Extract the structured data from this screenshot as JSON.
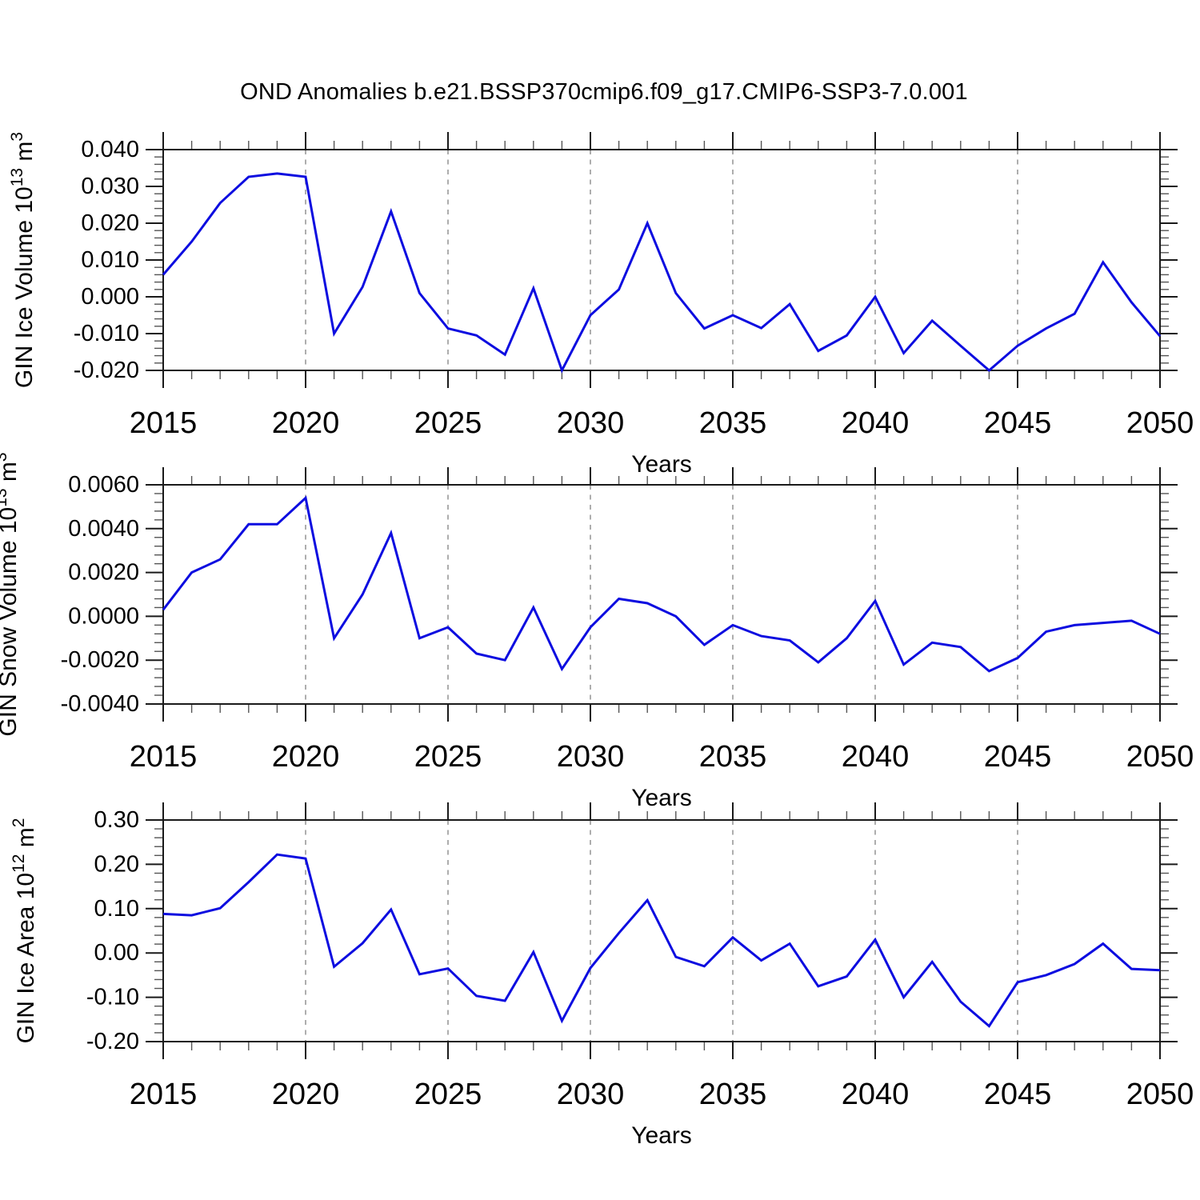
{
  "title": "OND Anomalies b.e21.BSSP370cmip6.f09_g17.CMIP6-SSP3-7.0.001",
  "xlabel": "Years",
  "colors": {
    "line": "#0d0de0",
    "grid": "#999999",
    "axis": "#1a1a1a",
    "minor_tick": "#555555",
    "text": "#000000"
  },
  "years": [
    2015,
    2016,
    2017,
    2018,
    2019,
    2020,
    2021,
    2022,
    2023,
    2024,
    2025,
    2026,
    2027,
    2028,
    2029,
    2030,
    2031,
    2032,
    2033,
    2034,
    2035,
    2036,
    2037,
    2038,
    2039,
    2040,
    2041,
    2042,
    2043,
    2044,
    2045,
    2046,
    2047,
    2048,
    2049,
    2050
  ],
  "x_major_ticks": [
    2015,
    2020,
    2025,
    2030,
    2035,
    2040,
    2045,
    2050
  ],
  "x_gridline_years": [
    2020,
    2025,
    2030,
    2035,
    2040,
    2045
  ],
  "chart_data": [
    {
      "type": "line",
      "name": "gin-ice-volume",
      "ylabel_parts": [
        "GIN Ice Volume 10",
        "13",
        " m",
        "3"
      ],
      "xlabel": "Years",
      "x_range": [
        2015,
        2050
      ],
      "x_step": 1,
      "ylim": [
        -0.02,
        0.04
      ],
      "y_minor_step": 0.002,
      "yticks": [
        {
          "value": 0.04,
          "label": "0.040"
        },
        {
          "value": 0.03,
          "label": "0.030"
        },
        {
          "value": 0.02,
          "label": "0.020"
        },
        {
          "value": 0.01,
          "label": "0.010"
        },
        {
          "value": 0.0,
          "label": "0.000"
        },
        {
          "value": -0.01,
          "label": "-0.010"
        },
        {
          "value": -0.02,
          "label": "-0.020"
        }
      ],
      "values": [
        0.006,
        0.015,
        0.0255,
        0.0326,
        0.0335,
        0.0326,
        -0.01,
        0.0027,
        0.0232,
        0.001,
        -0.0086,
        -0.0105,
        -0.0157,
        0.0023,
        -0.02,
        -0.005,
        0.002,
        0.02,
        0.001,
        -0.0086,
        -0.005,
        -0.0085,
        -0.002,
        -0.0147,
        -0.0105,
        0.0,
        -0.0153,
        -0.0065,
        -0.0133,
        -0.02,
        -0.0133,
        -0.0086,
        -0.0046,
        0.0094,
        -0.0015,
        -0.0107
      ]
    },
    {
      "type": "line",
      "name": "gin-snow-volume",
      "ylabel_parts": [
        "GIN Snow Volume 10",
        "13",
        " m",
        "3"
      ],
      "xlabel": "Years",
      "x_range": [
        2015,
        2050
      ],
      "x_step": 1,
      "ylim": [
        -0.004,
        0.006
      ],
      "y_minor_step": 0.0004,
      "yticks": [
        {
          "value": 0.006,
          "label": "0.0060"
        },
        {
          "value": 0.004,
          "label": "0.0040"
        },
        {
          "value": 0.002,
          "label": "0.0020"
        },
        {
          "value": 0.0,
          "label": "0.0000"
        },
        {
          "value": -0.002,
          "label": "-0.0020"
        },
        {
          "value": -0.004,
          "label": "-0.0040"
        }
      ],
      "values": [
        0.0003,
        0.002,
        0.0026,
        0.0042,
        0.0042,
        0.0054,
        -0.001,
        0.001,
        0.0038,
        -0.001,
        -0.0005,
        -0.0017,
        -0.002,
        0.0004,
        -0.0024,
        -0.0005,
        0.0008,
        0.0006,
        0.0,
        -0.0013,
        -0.0004,
        -0.0009,
        -0.0011,
        -0.0021,
        -0.001,
        0.0007,
        -0.0022,
        -0.0012,
        -0.0014,
        -0.0025,
        -0.0019,
        -0.0007,
        -0.0004,
        -0.0003,
        -0.0002,
        -0.0008
      ]
    },
    {
      "type": "line",
      "name": "gin-ice-area",
      "ylabel_parts": [
        "GIN Ice Area 10",
        "12",
        " m",
        "2"
      ],
      "xlabel": "Years",
      "x_range": [
        2015,
        2050
      ],
      "x_step": 1,
      "ylim": [
        -0.2,
        0.3
      ],
      "y_minor_step": 0.02,
      "yticks": [
        {
          "value": 0.3,
          "label": "0.30"
        },
        {
          "value": 0.2,
          "label": "0.20"
        },
        {
          "value": 0.1,
          "label": "0.10"
        },
        {
          "value": 0.0,
          "label": "0.00"
        },
        {
          "value": -0.1,
          "label": "-0.10"
        },
        {
          "value": -0.2,
          "label": "-0.20"
        }
      ],
      "values": [
        0.088,
        0.085,
        0.101,
        0.16,
        0.222,
        0.213,
        -0.031,
        0.022,
        0.098,
        -0.048,
        -0.035,
        -0.097,
        -0.108,
        0.002,
        -0.153,
        -0.034,
        0.045,
        0.119,
        -0.009,
        -0.03,
        0.035,
        -0.017,
        0.021,
        -0.075,
        -0.053,
        0.03,
        -0.1,
        -0.02,
        -0.11,
        -0.165,
        -0.066,
        -0.05,
        -0.025,
        0.021,
        -0.036,
        -0.039
      ]
    }
  ]
}
